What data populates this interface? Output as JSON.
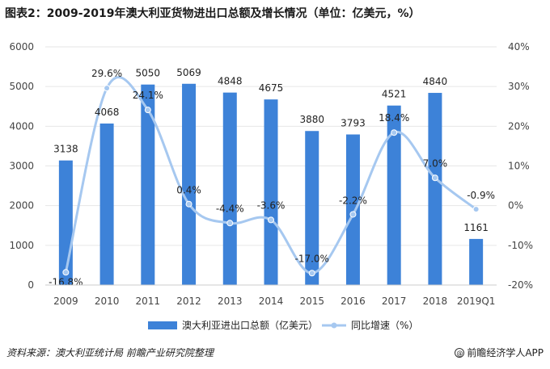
{
  "title": "图表2：2009-2019年澳大利亚货物进出口总额及增长情况（单位：亿美元，%）",
  "source": "资料来源：澳大利亚统计局 前瞻产业研究院整理",
  "brand": "前瞻经济学人APP",
  "brand_icon": "at-icon",
  "colors": {
    "bar": "#3d82d8",
    "line": "#a6c8f0",
    "grid": "#e6e6e6"
  },
  "chart_data": {
    "type": "bar",
    "categories": [
      "2009",
      "2010",
      "2011",
      "2012",
      "2013",
      "2014",
      "2015",
      "2016",
      "2017",
      "2018",
      "2019Q1"
    ],
    "series": [
      {
        "name": "澳大利亚进出口总额（亿美元）",
        "type": "bar",
        "axis": "left",
        "values": [
          3138,
          4068,
          5050,
          5069,
          4848,
          4675,
          3880,
          3793,
          4521,
          4840,
          1161
        ],
        "labels": [
          "3138",
          "4068",
          "5050",
          "5069",
          "4848",
          "4675",
          "3880",
          "3793",
          "4521",
          "4840",
          "1161"
        ]
      },
      {
        "name": "同比增速（%）",
        "type": "line",
        "axis": "right",
        "values": [
          -16.8,
          29.6,
          24.1,
          0.4,
          -4.4,
          -3.6,
          -17.0,
          -2.2,
          18.4,
          7.0,
          -0.9
        ],
        "labels": [
          "-16.8%",
          "29.6%",
          "24.1%",
          "0.4%",
          "-4.4%",
          "-3.6%",
          "-17.0%",
          "-2.2%",
          "18.4%",
          "7.0%",
          "-0.9%"
        ]
      }
    ],
    "y_left": {
      "min": 0,
      "max": 6000,
      "ticks": [
        0,
        1000,
        2000,
        3000,
        4000,
        5000,
        6000
      ],
      "tick_labels": [
        "0",
        "1000",
        "2000",
        "3000",
        "4000",
        "5000",
        "6000"
      ]
    },
    "y_right": {
      "min": -20,
      "max": 40,
      "ticks": [
        -20,
        -10,
        0,
        10,
        20,
        30,
        40
      ],
      "tick_labels": [
        "-20%",
        "-10%",
        "0%",
        "10%",
        "20%",
        "30%",
        "40%"
      ]
    },
    "grid": true,
    "legend": "bottom",
    "xlabel": "",
    "ylabel": ""
  }
}
